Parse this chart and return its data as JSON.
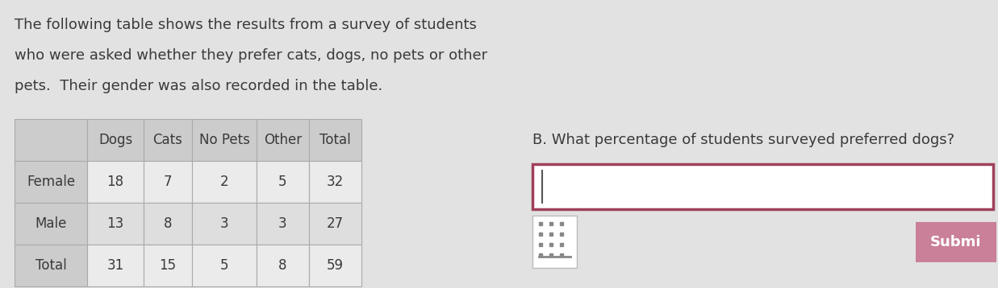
{
  "description_lines": [
    "The following table shows the results from a survey of students",
    "who were asked whether they prefer cats, dogs, no pets or other",
    "pets.  Their gender was also recorded in the table."
  ],
  "col_headers": [
    "",
    "Dogs",
    "Cats",
    "No Pets",
    "Other",
    "Total"
  ],
  "rows": [
    [
      "Female",
      "18",
      "7",
      "2",
      "5",
      "32"
    ],
    [
      "Male",
      "13",
      "8",
      "3",
      "3",
      "27"
    ],
    [
      "Total",
      "31",
      "15",
      "5",
      "8",
      "59"
    ]
  ],
  "question_text": "B. What percentage of students surveyed preferred dogs?",
  "input_box_border_color": "#a0405a",
  "submit_bg_color": "#c98098",
  "submit_text": "Submi",
  "bg_color": "#e2e2e2",
  "table_header_bg": "#cccccc",
  "table_data_bg_odd": "#ebebeb",
  "table_data_bg_even": "#dedede",
  "table_border_color": "#aaaaaa",
  "text_color": "#3a3a3a",
  "description_fontsize": 13,
  "table_fontsize": 12,
  "question_fontsize": 13
}
